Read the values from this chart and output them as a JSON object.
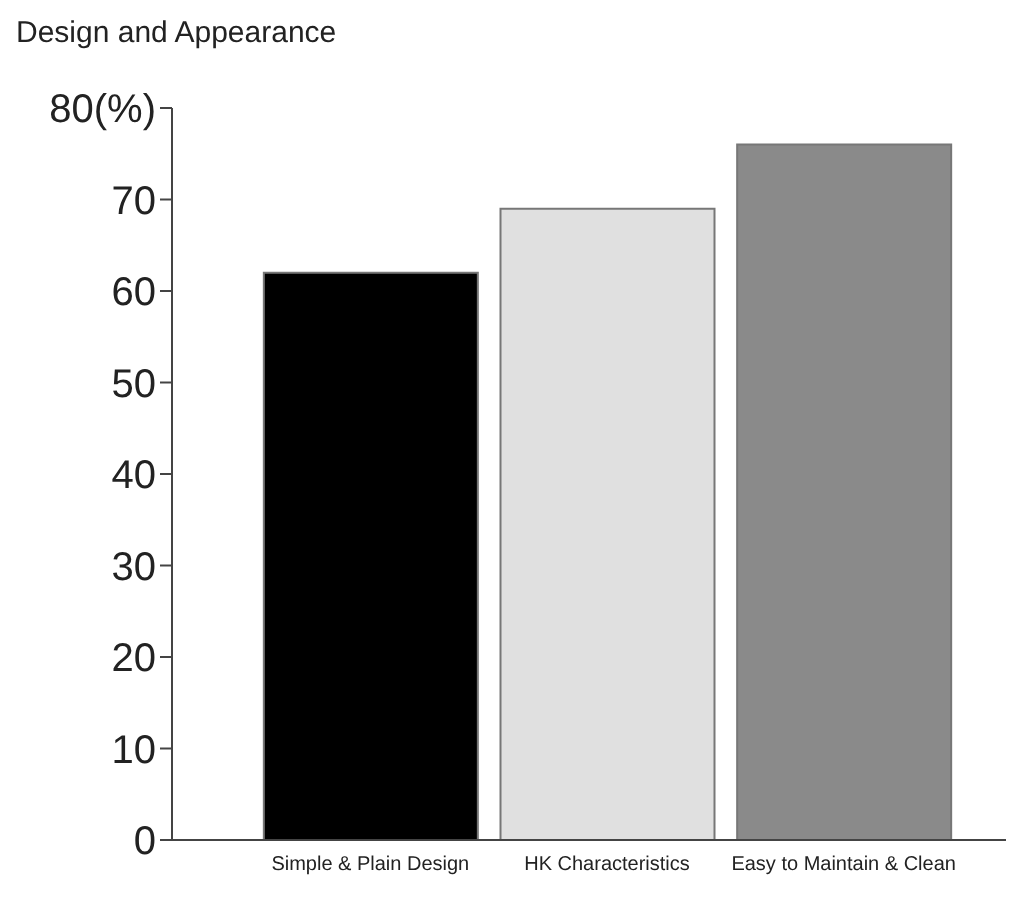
{
  "chart_data": {
    "type": "bar",
    "title": "Design and Appearance",
    "categories": [
      "Simple & Plain Design",
      "HK Characteristics",
      "Easy to Maintain & Clean"
    ],
    "values": [
      62,
      69,
      76
    ],
    "colors": [
      "#000000",
      "#e0e0e0",
      "#8a8a8a"
    ],
    "ylim": [
      0,
      80
    ],
    "yticks": [
      0,
      10,
      20,
      30,
      40,
      50,
      60,
      70,
      {
        "value": 80,
        "label": "80(%)"
      }
    ],
    "grid": false
  }
}
